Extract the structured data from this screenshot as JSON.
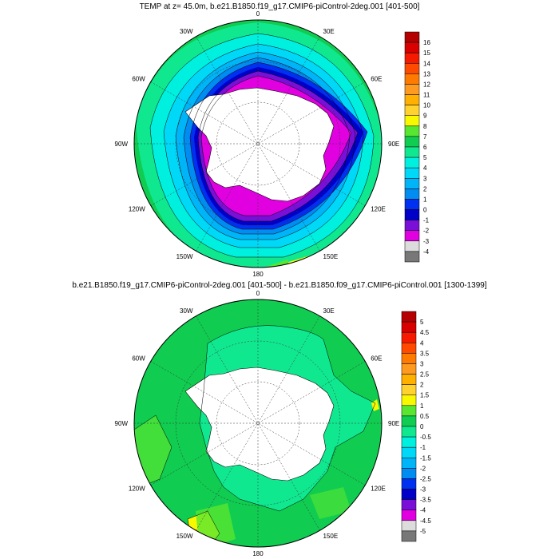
{
  "panels": [
    {
      "id": "top",
      "title": "TEMP at z=  45.0m, b.e21.B1850.f19_g17.CMIP6-piControl-2deg.001 [401-500]",
      "lon_labels": [
        "0",
        "30E",
        "60E",
        "90E",
        "120E",
        "150E",
        "180",
        "150W",
        "120W",
        "90W",
        "60W",
        "30W"
      ],
      "colorbar": {
        "labels": [
          "16",
          "15",
          "14",
          "13",
          "12",
          "11",
          "10",
          "9",
          "8",
          "7",
          "6",
          "5",
          "4",
          "3",
          "2",
          "1",
          "0",
          "-1",
          "-2",
          "-3",
          "-4"
        ],
        "colors": [
          "#b40000",
          "#d90000",
          "#f51a00",
          "#ff4a00",
          "#ff7a00",
          "#ff9a20",
          "#ffb000",
          "#ffd230",
          "#f8f800",
          "#58e630",
          "#10cc50",
          "#10e890",
          "#00f0e0",
          "#00d8f8",
          "#00b4f8",
          "#008cf0",
          "#0030f0",
          "#0000c8",
          "#7a10d8",
          "#e000e0",
          "#dcdcdc",
          "#787878"
        ]
      }
    },
    {
      "id": "bottom",
      "title": "b.e21.B1850.f19_g17.CMIP6-piControl-2deg.001 [401-500] - b.e21.B1850.f09_g17.CMIP6-piControl.001 [1300-1399]",
      "lon_labels": [
        "0",
        "30E",
        "60E",
        "90E",
        "120E",
        "150E",
        "180",
        "150W",
        "120W",
        "90W",
        "60W",
        "30W"
      ],
      "colorbar": {
        "labels": [
          "5",
          "4.5",
          "4",
          "3.5",
          "3",
          "2.5",
          "2",
          "1.5",
          "1",
          "0.5",
          "0",
          "-0.5",
          "-1",
          "-1.5",
          "-2",
          "-2.5",
          "-3",
          "-3.5",
          "-4",
          "-4.5",
          "-5"
        ],
        "colors": [
          "#b40000",
          "#d90000",
          "#f51a00",
          "#ff4a00",
          "#ff7a00",
          "#ff9a20",
          "#ffb000",
          "#ffd230",
          "#f8f800",
          "#58e630",
          "#10cc50",
          "#10e890",
          "#00f0e0",
          "#00d8f8",
          "#00b4f8",
          "#008cf0",
          "#0030f0",
          "#0000c8",
          "#7a10d8",
          "#e000e0",
          "#dcdcdc",
          "#787878"
        ]
      }
    }
  ]
}
